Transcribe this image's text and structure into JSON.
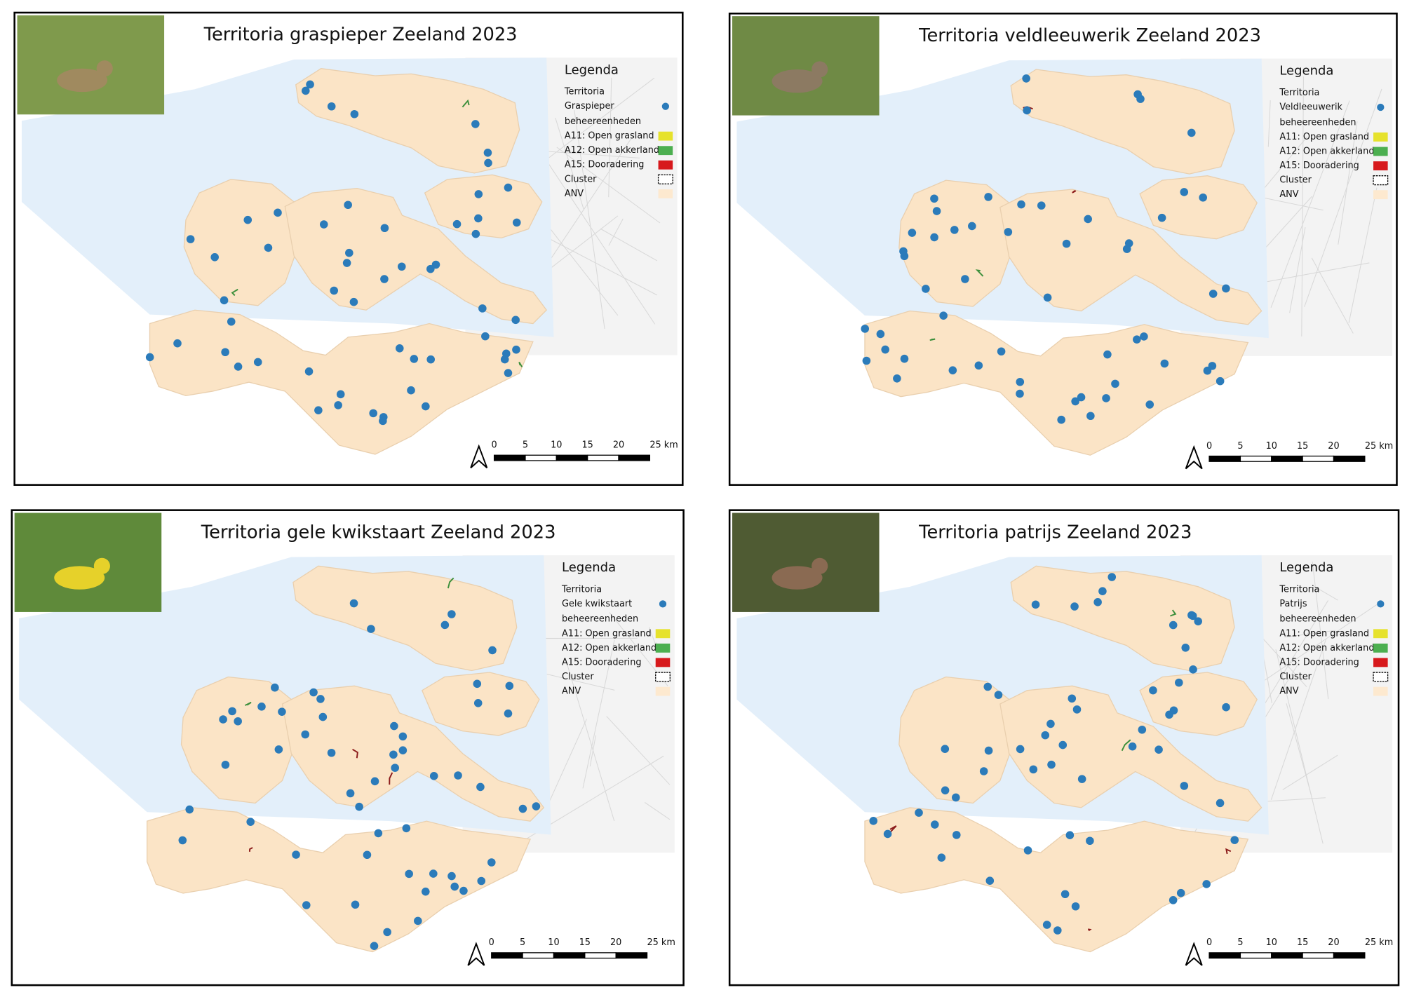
{
  "panels": [
    {
      "title": "Territoria graspieper Zeeland 2023",
      "legend": {
        "heading": "Legenda",
        "territory": "Territoria",
        "species": "Graspieper",
        "units": "beheereenheden",
        "items": [
          "A11: Open grasland",
          "A12: Open akkerland",
          "A15: Dooradering",
          "Cluster",
          "ANV"
        ]
      },
      "scale": [
        "0",
        "5",
        "10",
        "15",
        "20",
        "25 km"
      ]
    },
    {
      "title": "Territoria veldleeuwerik Zeeland 2023",
      "legend": {
        "heading": "Legenda",
        "territory": "Territoria",
        "species": "Veldleeuwerik",
        "units": "beheereenheden",
        "items": [
          "A11: Open grasland",
          "A12: Open akkerland",
          "A15: Dooradering",
          "Cluster",
          "ANV"
        ]
      },
      "scale": [
        "0",
        "5",
        "10",
        "15",
        "20",
        "25 km"
      ]
    },
    {
      "title": "Territoria gele kwikstaart Zeeland 2023",
      "legend": {
        "heading": "Legenda",
        "territory": "Territoria",
        "species": "Gele kwikstaart",
        "units": "beheereenheden",
        "items": [
          "A11: Open grasland",
          "A12: Open akkerland",
          "A15: Dooradering",
          "Cluster",
          "ANV"
        ]
      },
      "scale": [
        "0",
        "5",
        "10",
        "15",
        "20",
        "25 km"
      ]
    },
    {
      "title": "Territoria patrijs Zeeland 2023",
      "legend": {
        "heading": "Legenda",
        "territory": "Territoria",
        "species": "Patrijs",
        "units": "beheereenheden",
        "items": [
          "A11: Open grasland",
          "A12: Open akkerland",
          "A15: Dooradering",
          "Cluster",
          "ANV"
        ]
      },
      "scale": [
        "0",
        "5",
        "10",
        "15",
        "20",
        "25 km"
      ]
    }
  ]
}
